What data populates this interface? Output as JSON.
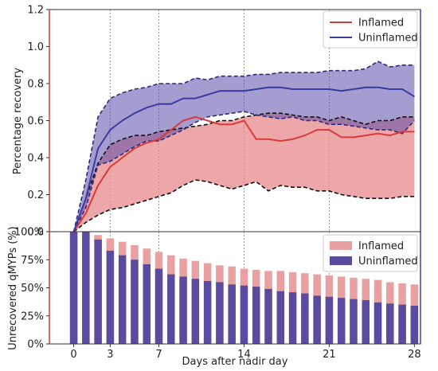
{
  "chart_data": [
    {
      "type": "line",
      "panel": "top",
      "ylabel": "Percentage recovery",
      "xlim": [
        -2,
        28.5
      ],
      "ylim": [
        0,
        1.2
      ],
      "yticks": [
        0.0,
        0.2,
        0.4,
        0.6,
        0.8,
        1.0,
        1.2
      ],
      "ytick_labels": [
        "0.0",
        "0.2",
        "0.4",
        "0.6",
        "0.8",
        "1.0",
        "1.2"
      ],
      "vlines_x": [
        3,
        7,
        14,
        21
      ],
      "legend_position": "top-right",
      "x": [
        0,
        1,
        2,
        3,
        4,
        5,
        6,
        7,
        8,
        9,
        10,
        11,
        12,
        13,
        14,
        15,
        16,
        17,
        18,
        19,
        20,
        21,
        22,
        23,
        24,
        25,
        26,
        27,
        28
      ],
      "series": [
        {
          "name": "Inflamed",
          "color": "#d93a3a",
          "fill": "#e8898c",
          "mean": [
            0.0,
            0.1,
            0.25,
            0.35,
            0.4,
            0.45,
            0.48,
            0.5,
            0.55,
            0.6,
            0.62,
            0.6,
            0.58,
            0.58,
            0.6,
            0.5,
            0.5,
            0.49,
            0.5,
            0.52,
            0.55,
            0.55,
            0.51,
            0.51,
            0.52,
            0.53,
            0.52,
            0.54,
            0.54
          ],
          "lower": [
            0.0,
            0.05,
            0.09,
            0.12,
            0.13,
            0.15,
            0.17,
            0.19,
            0.21,
            0.25,
            0.28,
            0.27,
            0.25,
            0.23,
            0.25,
            0.27,
            0.22,
            0.25,
            0.24,
            0.24,
            0.22,
            0.22,
            0.2,
            0.19,
            0.18,
            0.18,
            0.18,
            0.19,
            0.19
          ],
          "upper": [
            0.0,
            0.18,
            0.37,
            0.47,
            0.5,
            0.52,
            0.52,
            0.54,
            0.55,
            0.56,
            0.57,
            0.58,
            0.6,
            0.6,
            0.62,
            0.63,
            0.64,
            0.64,
            0.63,
            0.62,
            0.62,
            0.6,
            0.62,
            0.6,
            0.58,
            0.6,
            0.6,
            0.62,
            0.62
          ]
        },
        {
          "name": "Uninflamed",
          "color": "#3b3aa3",
          "fill": "#5b4da8",
          "mean": [
            0.0,
            0.18,
            0.45,
            0.55,
            0.6,
            0.64,
            0.67,
            0.69,
            0.69,
            0.72,
            0.72,
            0.74,
            0.76,
            0.76,
            0.76,
            0.77,
            0.78,
            0.78,
            0.77,
            0.77,
            0.77,
            0.77,
            0.76,
            0.77,
            0.78,
            0.78,
            0.77,
            0.77,
            0.73
          ],
          "lower": [
            0.0,
            0.13,
            0.36,
            0.38,
            0.42,
            0.46,
            0.49,
            0.49,
            0.52,
            0.55,
            0.59,
            0.62,
            0.63,
            0.64,
            0.65,
            0.63,
            0.62,
            0.61,
            0.62,
            0.6,
            0.6,
            0.58,
            0.58,
            0.57,
            0.56,
            0.55,
            0.55,
            0.53,
            0.6
          ],
          "upper": [
            0.0,
            0.28,
            0.62,
            0.72,
            0.75,
            0.77,
            0.78,
            0.8,
            0.8,
            0.8,
            0.83,
            0.82,
            0.84,
            0.84,
            0.84,
            0.85,
            0.85,
            0.86,
            0.86,
            0.86,
            0.86,
            0.87,
            0.87,
            0.87,
            0.88,
            0.92,
            0.89,
            0.9,
            0.9
          ]
        }
      ]
    },
    {
      "type": "bar",
      "panel": "bottom",
      "xlabel": "Days after nadir day",
      "ylabel": "Unrecovered qMYPs (%)",
      "xlim": [
        -2,
        28.5
      ],
      "ylim": [
        0,
        100
      ],
      "xticks": [
        0,
        3,
        7,
        14,
        21,
        28
      ],
      "xtick_labels": [
        "0",
        "3",
        "7",
        "14",
        "21",
        "28"
      ],
      "yticks": [
        0,
        25,
        50,
        75,
        100
      ],
      "ytick_labels": [
        "0%",
        "25%",
        "50%",
        "75%",
        "100%"
      ],
      "legend_position": "top-right",
      "x": [
        0,
        1,
        2,
        3,
        4,
        5,
        6,
        7,
        8,
        9,
        10,
        11,
        12,
        13,
        14,
        15,
        16,
        17,
        18,
        19,
        20,
        21,
        22,
        23,
        24,
        25,
        26,
        27,
        28
      ],
      "series": [
        {
          "name": "Inflamed",
          "color": "#e8a0a0",
          "values": [
            100,
            100,
            97,
            94,
            91,
            88,
            85,
            82,
            79,
            76,
            74,
            72,
            70,
            69,
            67,
            66,
            65,
            65,
            64,
            63,
            62,
            61,
            60,
            59,
            58,
            57,
            55,
            54,
            53
          ]
        },
        {
          "name": "Uninflamed",
          "color": "#5b4b9e",
          "values": [
            100,
            100,
            93,
            83,
            79,
            75,
            71,
            67,
            62,
            60,
            58,
            56,
            55,
            53,
            52,
            51,
            49,
            47,
            46,
            45,
            43,
            42,
            41,
            40,
            39,
            37,
            36,
            35,
            34
          ]
        }
      ]
    }
  ]
}
